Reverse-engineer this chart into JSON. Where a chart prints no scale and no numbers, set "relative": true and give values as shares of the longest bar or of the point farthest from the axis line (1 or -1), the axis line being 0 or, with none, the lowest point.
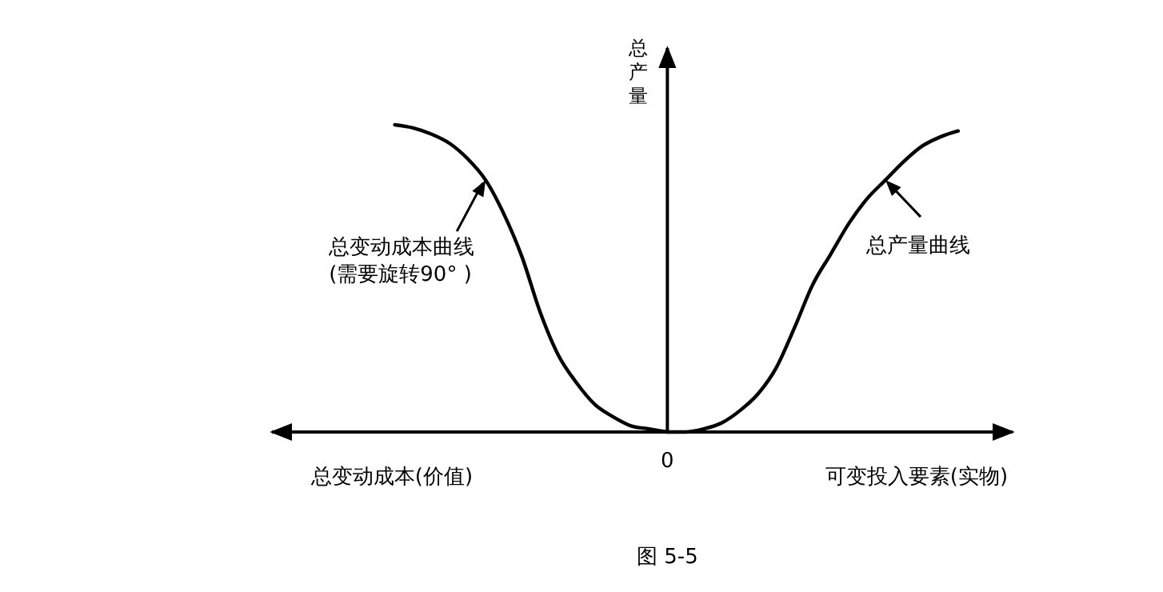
{
  "chart_data": {
    "type": "line",
    "relative": true,
    "legend": "top",
    "xlabel": "可变投入要素(实物)",
    "ylabel": "总产量",
    "categories": [
      null,
      null,
      null,
      null,
      null,
      null,
      null,
      null,
      null,
      null,
      null,
      null,
      null,
      null,
      null,
      null,
      null,
      null,
      null,
      null,
      null,
      null,
      null,
      null,
      null,
      null,
      null,
      null,
      null,
      null,
      null,
      null,
      null,
      null,
      null,
      null,
      null,
      null,
      null,
      null
    ],
    "series": [
      {
        "name": "总变动成本曲线(需要旋转90° )",
        "color": "#000000",
        "values": [
          null,
          null,
          null,
          null,
          null,
          1,
          0.99,
          0.97,
          0.94,
          0.89,
          0.82,
          0.71,
          0.57,
          0.39,
          0.25,
          0.16,
          0.09,
          0.05,
          0.02,
          0.01,
          0,
          null,
          null,
          null,
          null,
          null,
          null,
          null,
          null,
          null,
          null,
          null,
          null,
          null,
          null,
          null,
          null,
          null,
          null,
          null
        ]
      },
      {
        "name": "总产量曲线",
        "color": "#000000",
        "values": [
          null,
          null,
          null,
          null,
          null,
          null,
          null,
          null,
          null,
          null,
          null,
          null,
          null,
          null,
          null,
          null,
          null,
          null,
          null,
          null,
          0,
          0,
          0.01,
          0.03,
          0.07,
          0.125,
          0.21,
          0.34,
          0.48,
          0.58,
          0.68,
          0.76,
          0.82,
          0.88,
          0.93,
          0.96,
          0.98,
          null,
          null,
          null
        ]
      }
    ],
    "annotations": [
      "总变动成本(价值)",
      "图 5-5",
      "0"
    ]
  }
}
